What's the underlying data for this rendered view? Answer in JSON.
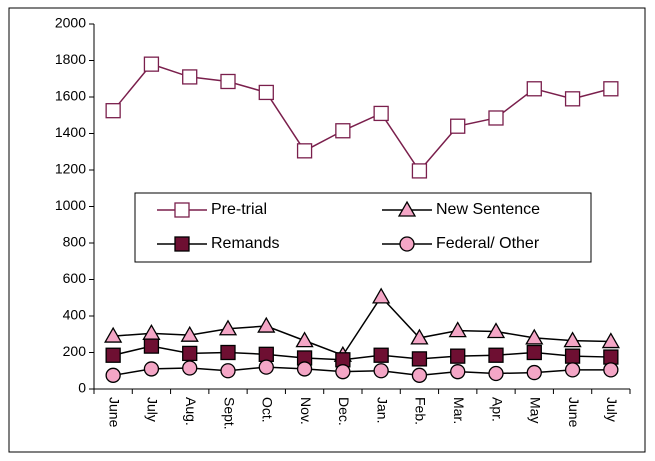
{
  "chart_data": {
    "type": "line",
    "categories": [
      "June",
      "July",
      "Aug.",
      "Sept.",
      "Oct.",
      "Nov.",
      "Dec.",
      "Jan.",
      "Feb.",
      "Mar.",
      "Apr.",
      "May",
      "June",
      "July"
    ],
    "series": [
      {
        "name": "Pre-trial",
        "color": "#7a1f4c",
        "marker": "square",
        "marker_color": "#ffffff",
        "values": [
          1525,
          1780,
          1710,
          1685,
          1625,
          1305,
          1415,
          1510,
          1195,
          1440,
          1485,
          1645,
          1590,
          1645
        ]
      },
      {
        "name": "New Sentence",
        "color": "#000000",
        "marker": "triangle",
        "marker_color": "#f4a6c6",
        "values": [
          290,
          305,
          295,
          330,
          345,
          265,
          185,
          505,
          280,
          320,
          315,
          280,
          265,
          260
        ]
      },
      {
        "name": "Remands",
        "color": "#000000",
        "marker": "square",
        "marker_color": "#6e0f32",
        "values": [
          185,
          235,
          195,
          200,
          190,
          170,
          160,
          185,
          165,
          180,
          185,
          200,
          180,
          175
        ]
      },
      {
        "name": "Federal/ Other",
        "color": "#000000",
        "marker": "circle",
        "marker_color": "#f4a6c6",
        "values": [
          75,
          110,
          115,
          100,
          120,
          110,
          95,
          100,
          75,
          95,
          85,
          90,
          105,
          105
        ]
      }
    ],
    "ylim": [
      0,
      2000
    ],
    "yticks": [
      0,
      200,
      400,
      600,
      800,
      1000,
      1200,
      1400,
      1600,
      1800,
      2000
    ],
    "grid": false,
    "legend": "center"
  }
}
